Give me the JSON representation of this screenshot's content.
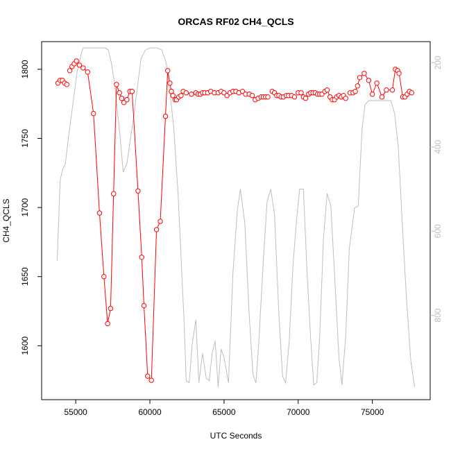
{
  "chart_data": {
    "type": "line",
    "title": "ORCAS RF02 CH4_QCLS",
    "xlabel": "UTC Seconds",
    "ylabel": "CH4_QCLS",
    "y2label": "",
    "xlim": [
      52700,
      78900
    ],
    "ylim": [
      1561,
      1820
    ],
    "y2lim": [
      1000,
      150
    ],
    "reversed_right_axis": true,
    "grid": false,
    "legend": "none",
    "x_ticks": [
      55000,
      60000,
      65000,
      70000,
      75000
    ],
    "x_tick_labels": [
      "55000",
      "60000",
      "65000",
      "70000",
      "75000"
    ],
    "y_ticks": [
      1600,
      1650,
      1700,
      1750,
      1800
    ],
    "y_tick_labels": [
      "1600",
      "1650",
      "1700",
      "1750",
      "1800"
    ],
    "y2_ticks": [
      200,
      400,
      600,
      800
    ],
    "y2_tick_labels": [
      "200",
      "400",
      "600",
      "800"
    ],
    "colors": {
      "ch4": "#ff0000",
      "pressure": "#bebebe",
      "axis": "#000000",
      "right_axis": "#bebebe"
    },
    "series": [
      {
        "role": "ch4",
        "axis": "left",
        "style": "line-points",
        "segments": [
          [
            [
              53800,
              1790
            ],
            [
              53950,
              1792
            ],
            [
              54100,
              1792
            ],
            [
              54250,
              1790
            ],
            [
              54400,
              1789
            ]
          ],
          [
            [
              54600,
              1799
            ],
            [
              54750,
              1802
            ],
            [
              54900,
              1804
            ],
            [
              55050,
              1806
            ],
            [
              55250,
              1803
            ],
            [
              55500,
              1801
            ],
            [
              55800,
              1798
            ],
            [
              56200,
              1768
            ],
            [
              56600,
              1696
            ],
            [
              56900,
              1650
            ],
            [
              57150,
              1616
            ],
            [
              57350,
              1627
            ],
            [
              57550,
              1710
            ],
            [
              57750,
              1789
            ],
            [
              57950,
              1783
            ],
            [
              58100,
              1779
            ],
            [
              58250,
              1776
            ],
            [
              58450,
              1778
            ],
            [
              58650,
              1784
            ],
            [
              58800,
              1784
            ],
            [
              59200,
              1712
            ],
            [
              59450,
              1664
            ],
            [
              59600,
              1629
            ],
            [
              59850,
              1578
            ],
            [
              60100,
              1575
            ],
            [
              60450,
              1684
            ],
            [
              60700,
              1690
            ],
            [
              61050,
              1766
            ],
            [
              61200,
              1799
            ],
            [
              61350,
              1790
            ],
            [
              61450,
              1784
            ],
            [
              61550,
              1781
            ],
            [
              61700,
              1778
            ],
            [
              61800,
              1778
            ],
            [
              61950,
              1780
            ],
            [
              62100,
              1781
            ],
            [
              62250,
              1784
            ],
            [
              62450,
              1783
            ],
            [
              62800,
              1782
            ],
            [
              63100,
              1783
            ],
            [
              63250,
              1782
            ],
            [
              63400,
              1782
            ],
            [
              63550,
              1783
            ],
            [
              63700,
              1783
            ],
            [
              63900,
              1783
            ],
            [
              64100,
              1784
            ],
            [
              64350,
              1783
            ],
            [
              64600,
              1783
            ],
            [
              64800,
              1784
            ],
            [
              65000,
              1783
            ],
            [
              65200,
              1781
            ],
            [
              65400,
              1783
            ],
            [
              65600,
              1784
            ],
            [
              65800,
              1784
            ],
            [
              66000,
              1783
            ],
            [
              66250,
              1784
            ],
            [
              66450,
              1782
            ],
            [
              66700,
              1782
            ],
            [
              66900,
              1781
            ],
            [
              67100,
              1778
            ],
            [
              67300,
              1779
            ],
            [
              67500,
              1780
            ],
            [
              67650,
              1780
            ],
            [
              67800,
              1780
            ],
            [
              67950,
              1780
            ]
          ],
          [
            [
              68250,
              1784
            ],
            [
              68400,
              1783
            ],
            [
              68550,
              1781
            ],
            [
              68700,
              1781
            ],
            [
              68850,
              1780
            ],
            [
              69000,
              1780
            ],
            [
              69200,
              1781
            ],
            [
              69350,
              1781
            ],
            [
              69550,
              1781
            ],
            [
              69750,
              1780
            ]
          ],
          [
            [
              70000,
              1783
            ],
            [
              70200,
              1783
            ],
            [
              70350,
              1780
            ],
            [
              70500,
              1779
            ],
            [
              70700,
              1782
            ],
            [
              70850,
              1783
            ],
            [
              71000,
              1783
            ],
            [
              71150,
              1783
            ],
            [
              71300,
              1782
            ],
            [
              71450,
              1782
            ],
            [
              71600,
              1782
            ],
            [
              71800,
              1784
            ],
            [
              71950,
              1785
            ],
            [
              72150,
              1780
            ],
            [
              72300,
              1778
            ],
            [
              72450,
              1778
            ],
            [
              72600,
              1780
            ],
            [
              72750,
              1781
            ],
            [
              72900,
              1780
            ],
            [
              73050,
              1781
            ],
            [
              73200,
              1779
            ]
          ],
          [
            [
              73500,
              1783
            ],
            [
              73700,
              1783
            ],
            [
              73850,
              1784
            ],
            [
              74000,
              1788
            ],
            [
              74150,
              1794
            ],
            [
              74450,
              1797
            ],
            [
              74750,
              1792
            ],
            [
              75000,
              1782
            ],
            [
              75300,
              1790
            ],
            [
              75650,
              1780
            ],
            [
              75950,
              1785
            ],
            [
              76350,
              1785
            ],
            [
              76550,
              1800
            ],
            [
              76700,
              1799
            ],
            [
              76800,
              1797
            ],
            [
              77050,
              1780
            ],
            [
              77200,
              1780
            ],
            [
              77350,
              1782
            ],
            [
              77500,
              1784
            ],
            [
              77650,
              1783
            ]
          ]
        ]
      },
      {
        "role": "pressure",
        "axis": "right",
        "style": "line",
        "segments": [
          [
            [
              53750,
              670
            ],
            [
              53950,
              480
            ],
            [
              54100,
              455
            ],
            [
              54300,
              440
            ],
            [
              54500,
              380
            ],
            [
              54800,
              300
            ],
            [
              55100,
              220
            ],
            [
              55400,
              175
            ],
            [
              55500,
              165
            ],
            [
              56000,
              165
            ],
            [
              56500,
              165
            ],
            [
              57000,
              165
            ],
            [
              57200,
              170
            ],
            [
              57400,
              200
            ],
            [
              57600,
              245
            ],
            [
              57800,
              310
            ],
            [
              58000,
              380
            ],
            [
              58200,
              460
            ],
            [
              58450,
              440
            ],
            [
              58650,
              390
            ],
            [
              58900,
              330
            ],
            [
              59150,
              260
            ],
            [
              59400,
              190
            ],
            [
              59700,
              170
            ],
            [
              60000,
              165
            ],
            [
              60300,
              165
            ],
            [
              60500,
              165
            ],
            [
              60800,
              170
            ],
            [
              61100,
              200
            ],
            [
              61350,
              270
            ],
            [
              61600,
              350
            ],
            [
              61900,
              510
            ],
            [
              62100,
              660
            ],
            [
              62300,
              810
            ],
            [
              62450,
              955
            ],
            [
              62650,
              960
            ],
            [
              62850,
              870
            ],
            [
              63100,
              810
            ],
            [
              63300,
              960
            ],
            [
              63550,
              890
            ],
            [
              63800,
              950
            ],
            [
              64000,
              955
            ],
            [
              64200,
              890
            ],
            [
              64400,
              860
            ],
            [
              64600,
              970
            ],
            [
              64800,
              880
            ],
            [
              65000,
              900
            ],
            [
              65300,
              960
            ],
            [
              65600,
              700
            ],
            [
              65900,
              550
            ],
            [
              66100,
              500
            ],
            [
              66400,
              580
            ],
            [
              66700,
              800
            ],
            [
              66950,
              940
            ],
            [
              67150,
              960
            ],
            [
              67350,
              860
            ],
            [
              67650,
              670
            ],
            [
              67900,
              530
            ],
            [
              68150,
              500
            ],
            [
              68400,
              560
            ],
            [
              68700,
              800
            ],
            [
              68950,
              945
            ],
            [
              69150,
              960
            ],
            [
              69400,
              860
            ],
            [
              69650,
              680
            ],
            [
              69900,
              570
            ],
            [
              70100,
              500
            ],
            [
              70350,
              500
            ],
            [
              70600,
              700
            ],
            [
              70850,
              860
            ],
            [
              71050,
              965
            ],
            [
              71250,
              960
            ],
            [
              71450,
              850
            ],
            [
              71700,
              620
            ],
            [
              71950,
              510
            ],
            [
              72200,
              540
            ],
            [
              72450,
              700
            ],
            [
              72750,
              900
            ],
            [
              72950,
              965
            ],
            [
              73200,
              850
            ],
            [
              73450,
              640
            ],
            [
              73800,
              545
            ],
            [
              74050,
              540
            ],
            [
              74300,
              360
            ],
            [
              74500,
              300
            ],
            [
              74750,
              290
            ],
            [
              75000,
              290
            ],
            [
              75500,
              290
            ],
            [
              76000,
              290
            ],
            [
              76250,
              290
            ],
            [
              76500,
              320
            ],
            [
              76750,
              400
            ],
            [
              77000,
              570
            ],
            [
              77300,
              760
            ],
            [
              77600,
              910
            ],
            [
              77850,
              970
            ]
          ]
        ]
      }
    ]
  }
}
